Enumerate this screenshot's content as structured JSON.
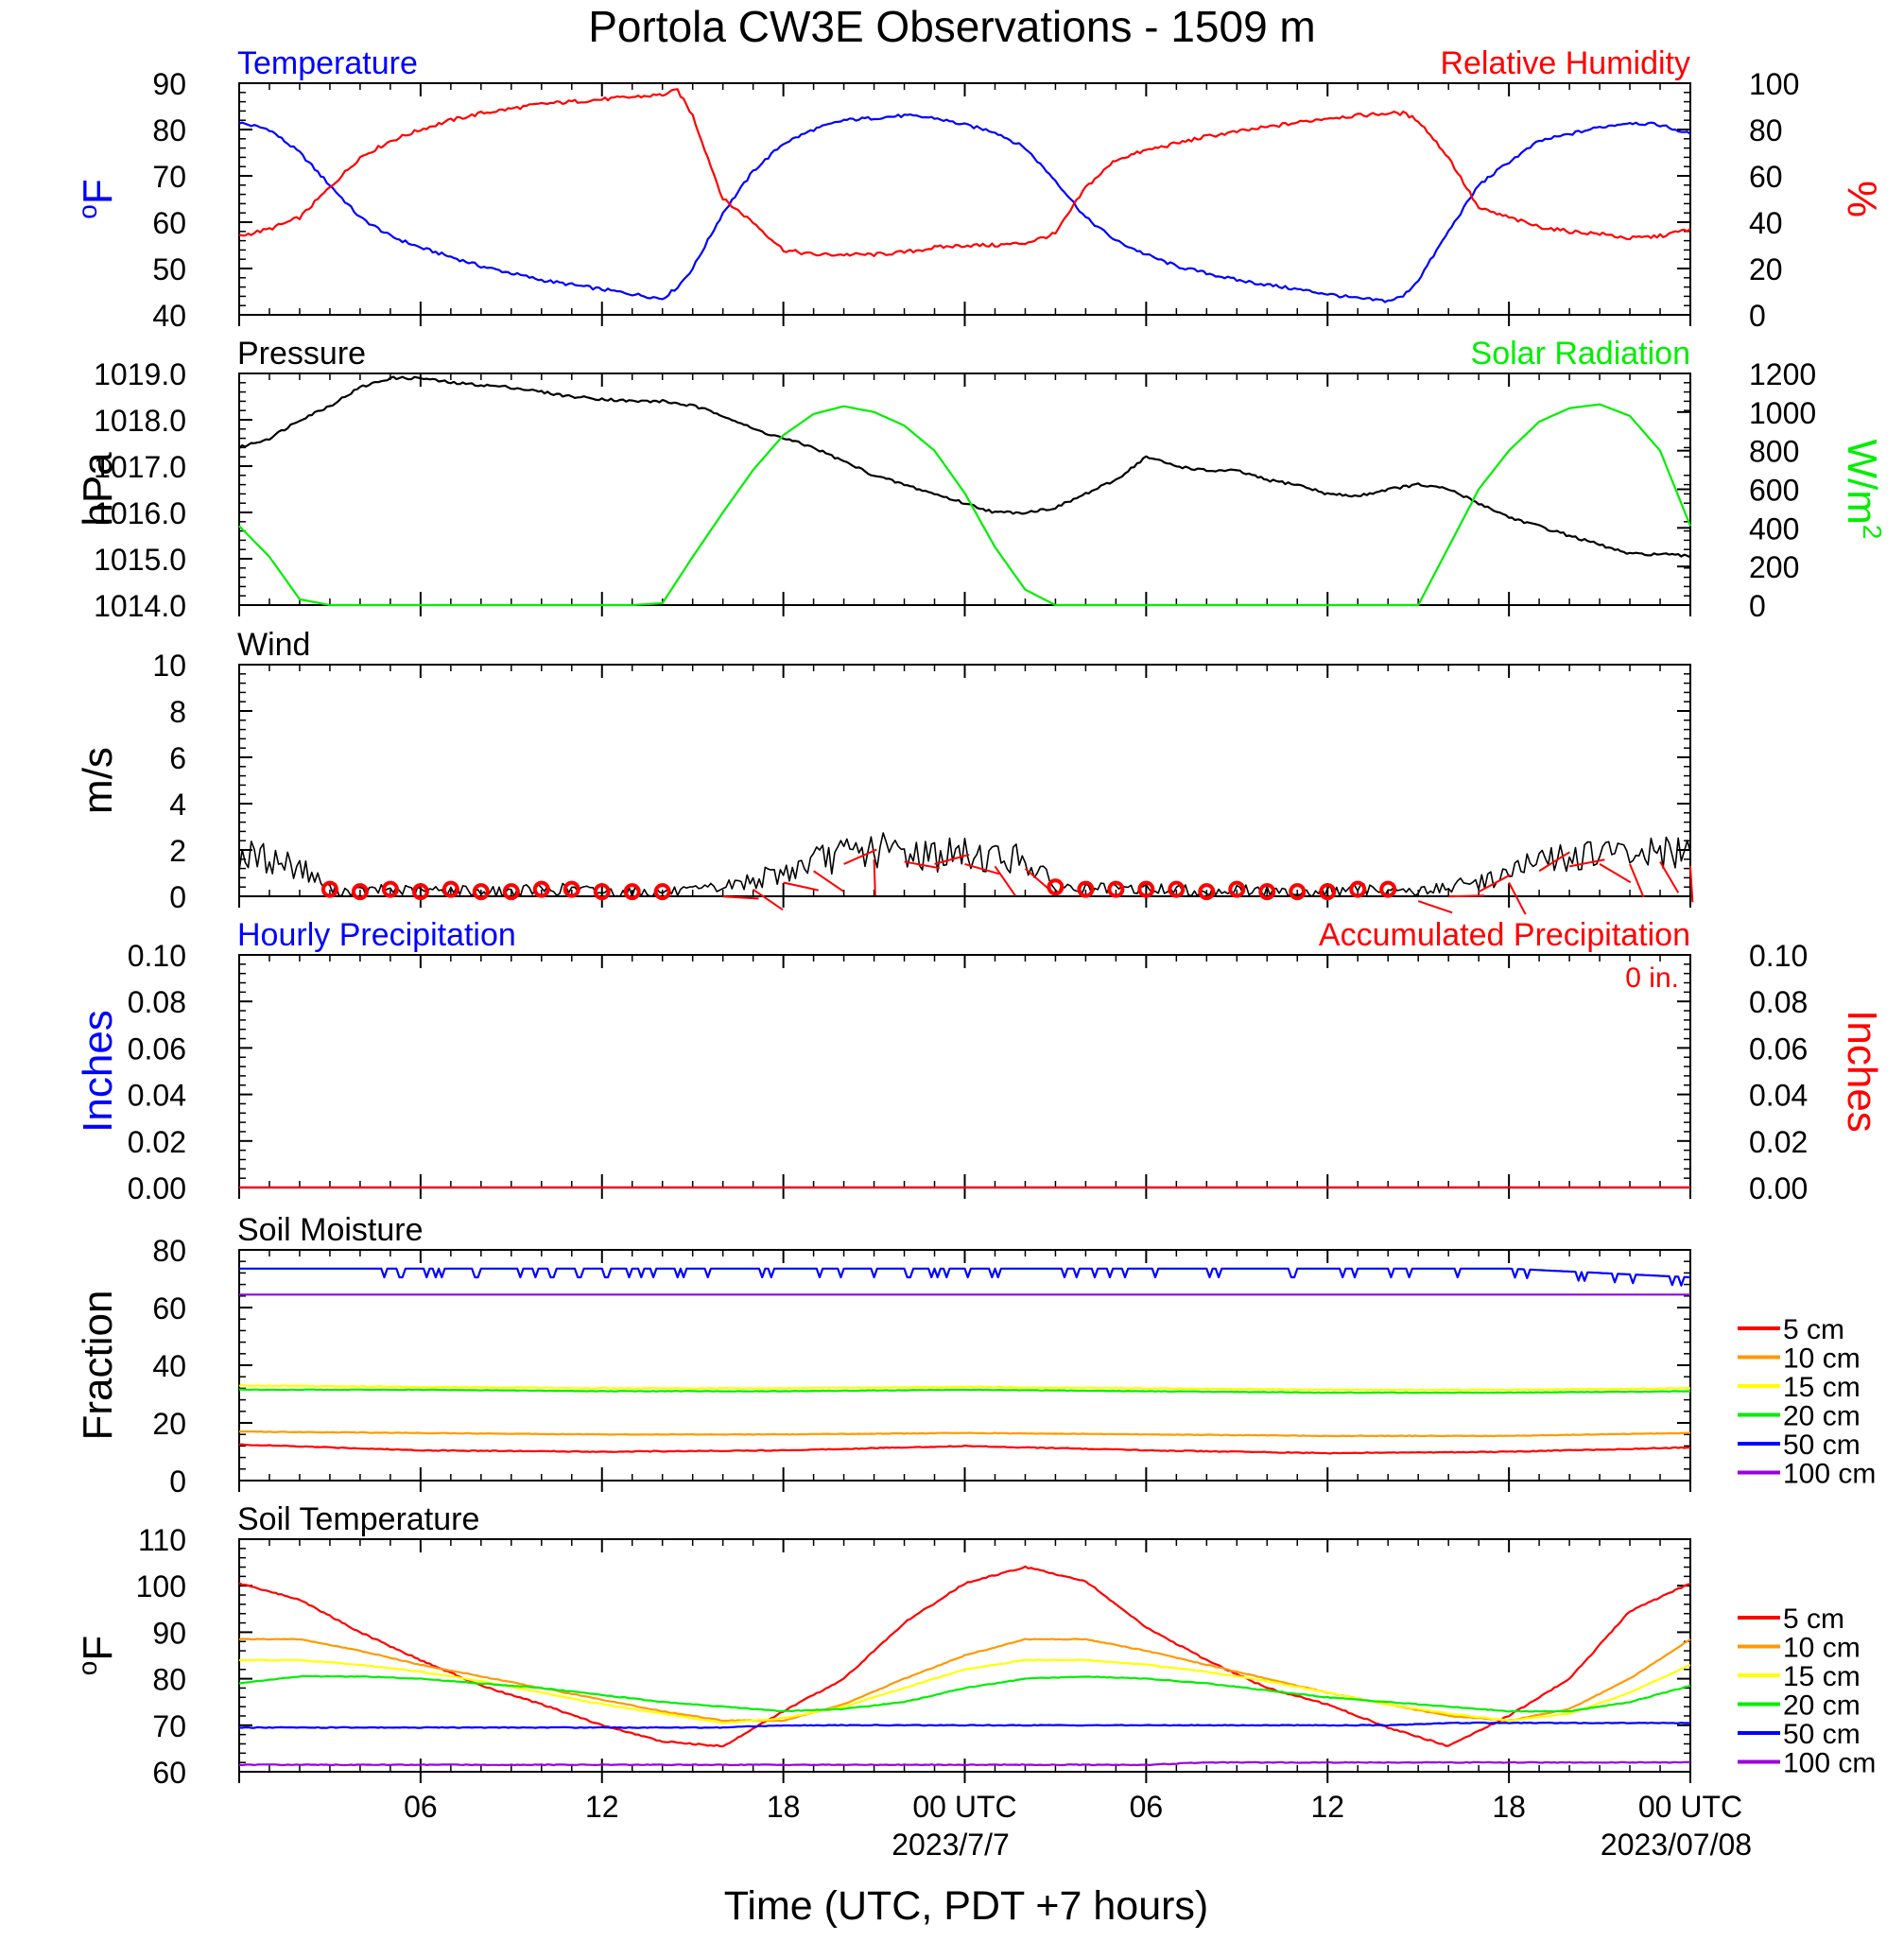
{
  "title": "Portola CW3E Observations - 1509 m",
  "x_axis": {
    "ticks": [
      "06",
      "12",
      "18",
      "00 UTC",
      "06",
      "12",
      "18",
      "00 UTC"
    ],
    "dates": [
      "2023/7/7",
      "2023/07/08"
    ],
    "label": "Time (UTC, PDT +7 hours)"
  },
  "colors": {
    "temperature": "#0000ff",
    "humidity": "#ff0000",
    "pressure": "#000000",
    "solar": "#00ee00",
    "wind": "#000000",
    "wind_symbols": "#ff0000",
    "hourly_precip": "#0000ff",
    "accum_precip": "#ff0000",
    "depth_5": "#ff0000",
    "depth_10": "#ff9900",
    "depth_15": "#ffff00",
    "depth_20": "#00ee00",
    "depth_50": "#0000ff",
    "depth_100": "#9900dd"
  },
  "chart_data": [
    {
      "type": "line",
      "id": "temp_rh",
      "title_left": "Temperature",
      "title_right": "Relative Humidity",
      "ylabel_left": "oF",
      "ylabel_right": "%",
      "ylim_left": [
        40,
        90
      ],
      "ylim_right": [
        0,
        100
      ],
      "yticks_left": [
        "40",
        "50",
        "60",
        "70",
        "80",
        "90"
      ],
      "yticks_right": [
        "0",
        "20",
        "40",
        "60",
        "80",
        "100"
      ],
      "x_hours": [
        0,
        1,
        2,
        3,
        4,
        5,
        6,
        7,
        8,
        9,
        10,
        11,
        12,
        13,
        14,
        14.5,
        15,
        16,
        17,
        18,
        19,
        20,
        21,
        22,
        23,
        24,
        25,
        26,
        27,
        28,
        29,
        30,
        31,
        32,
        33,
        34,
        35,
        36,
        37,
        38,
        38.5,
        39,
        40,
        41,
        42,
        43,
        44,
        45,
        46,
        47,
        48
      ],
      "series": [
        {
          "name": "Temperature",
          "axis": "left",
          "values": [
            81.5,
            80,
            75,
            68,
            61,
            57,
            54.5,
            52.5,
            50.5,
            49,
            47.5,
            46.5,
            45.5,
            44.5,
            43.5,
            46,
            50,
            62,
            71,
            77,
            80,
            82,
            82.5,
            83,
            82.5,
            81,
            79.5,
            76,
            69,
            61,
            56,
            53,
            50.5,
            49,
            47.5,
            46.5,
            45.5,
            44.5,
            43.5,
            43,
            44,
            47.5,
            58,
            68,
            73,
            77.5,
            79,
            80.5,
            81.5,
            81,
            79
          ]
        },
        {
          "name": "Relative Humidity",
          "axis": "right",
          "values": [
            34,
            37,
            42,
            55,
            68,
            75,
            80,
            84,
            87,
            89,
            91,
            92,
            93,
            94,
            95,
            97,
            86,
            50,
            40,
            28,
            26,
            26,
            26,
            27,
            29,
            30,
            30,
            31,
            35,
            55,
            67,
            71,
            74,
            77,
            79,
            81,
            83,
            85,
            86,
            87,
            87,
            84,
            68,
            46,
            42,
            38,
            36,
            35,
            33,
            34,
            37
          ]
        }
      ]
    },
    {
      "type": "line",
      "id": "pressure_solar",
      "title_left": "Pressure",
      "title_right": "Solar Radiation",
      "ylabel_left": "hPa",
      "ylabel_right": "W/m2",
      "ylim_left": [
        1014.0,
        1019.0
      ],
      "ylim_right": [
        0,
        1200
      ],
      "yticks_left": [
        "1014.0",
        "1015.0",
        "1016.0",
        "1017.0",
        "1018.0",
        "1019.0"
      ],
      "yticks_right": [
        "0",
        "200",
        "400",
        "600",
        "800",
        "1000",
        "1200"
      ],
      "x_hours": [
        0,
        1,
        2,
        3,
        4,
        5,
        6,
        7,
        8,
        9,
        10,
        11,
        12,
        13,
        14,
        15,
        16,
        17,
        18,
        19,
        20,
        21,
        22,
        23,
        24,
        25,
        26,
        27,
        28,
        29,
        30,
        31,
        32,
        33,
        34,
        35,
        36,
        37,
        38,
        39,
        40,
        41,
        42,
        43,
        44,
        45,
        46,
        47,
        48
      ],
      "series": [
        {
          "name": "Pressure",
          "axis": "left",
          "values": [
            1017.4,
            1017.6,
            1018.0,
            1018.3,
            1018.7,
            1018.9,
            1018.9,
            1018.8,
            1018.75,
            1018.7,
            1018.6,
            1018.5,
            1018.45,
            1018.4,
            1018.4,
            1018.3,
            1018.1,
            1017.8,
            1017.6,
            1017.4,
            1017.1,
            1016.8,
            1016.6,
            1016.4,
            1016.2,
            1016.0,
            1016.0,
            1016.1,
            1016.4,
            1016.7,
            1017.2,
            1017.0,
            1016.9,
            1016.9,
            1016.7,
            1016.6,
            1016.4,
            1016.35,
            1016.5,
            1016.6,
            1016.5,
            1016.2,
            1015.9,
            1015.7,
            1015.5,
            1015.3,
            1015.1,
            1015.1,
            1015.05
          ]
        },
        {
          "name": "Solar Radiation",
          "axis": "right",
          "values": [
            410,
            250,
            30,
            0,
            0,
            0,
            0,
            0,
            0,
            0,
            0,
            0,
            0,
            0,
            10,
            250,
            480,
            700,
            880,
            990,
            1030,
            1000,
            930,
            800,
            580,
            300,
            80,
            0,
            0,
            0,
            0,
            0,
            0,
            0,
            0,
            0,
            0,
            0,
            0,
            0,
            300,
            600,
            800,
            950,
            1020,
            1040,
            980,
            800,
            410
          ]
        }
      ]
    },
    {
      "type": "line",
      "id": "wind",
      "title_left": "Wind",
      "ylabel_left": "m/s",
      "ylim_left": [
        0,
        10
      ],
      "yticks_left": [
        "0",
        "2",
        "4",
        "6",
        "8",
        "10"
      ],
      "x_hours": [
        0,
        1,
        2,
        3,
        4,
        5,
        6,
        7,
        8,
        9,
        10,
        11,
        12,
        13,
        14,
        15,
        16,
        17,
        18,
        19,
        20,
        21,
        22,
        23,
        24,
        25,
        26,
        27,
        28,
        29,
        30,
        31,
        32,
        33,
        34,
        35,
        36,
        37,
        38,
        39,
        40,
        41,
        42,
        43,
        44,
        45,
        46,
        47,
        48
      ],
      "series": [
        {
          "name": "Wind Speed",
          "axis": "left",
          "values": [
            1.8,
            1.6,
            1.3,
            0.3,
            0.2,
            0.3,
            0.2,
            0.3,
            0.2,
            0.2,
            0.3,
            0.3,
            0.2,
            0.2,
            0.2,
            0.2,
            0.4,
            0.7,
            1.0,
            1.5,
            1.8,
            2.0,
            1.9,
            1.8,
            1.8,
            1.7,
            1.6,
            0.4,
            0.3,
            0.3,
            0.3,
            0.3,
            0.2,
            0.3,
            0.2,
            0.2,
            0.2,
            0.3,
            0.3,
            0.2,
            0.4,
            0.6,
            1.0,
            1.5,
            1.7,
            1.8,
            1.8,
            1.9,
            1.7
          ]
        }
      ],
      "calm_markers_hours": [
        3,
        4,
        5,
        6,
        7,
        8,
        9,
        10,
        11,
        12,
        13,
        14,
        27,
        28,
        29,
        30,
        31,
        32,
        33,
        34,
        35,
        36,
        37,
        38
      ]
    },
    {
      "type": "line",
      "id": "precip",
      "title_left": "Hourly Precipitation",
      "title_right": "Accumulated Precipitation",
      "accum_total": "0 in.",
      "ylabel_left": "Inches",
      "ylabel_right": "Inches",
      "ylim_left": [
        0,
        0.1
      ],
      "ylim_right": [
        0,
        0.1
      ],
      "yticks_left": [
        "0.00",
        "0.02",
        "0.04",
        "0.06",
        "0.08",
        "0.10"
      ],
      "yticks_right": [
        "0.00",
        "0.02",
        "0.04",
        "0.06",
        "0.08",
        "0.10"
      ],
      "x_hours": [
        0,
        48
      ],
      "series": [
        {
          "name": "Hourly Precipitation",
          "axis": "left",
          "values": [
            0,
            0
          ]
        },
        {
          "name": "Accumulated Precipitation",
          "axis": "right",
          "values": [
            0,
            0
          ]
        }
      ]
    },
    {
      "type": "line",
      "id": "soil_moisture",
      "title_left": "Soil Moisture",
      "ylabel_left": "Fraction",
      "ylim_left": [
        0,
        80
      ],
      "yticks_left": [
        "0",
        "20",
        "40",
        "60",
        "80"
      ],
      "legend": [
        "5 cm",
        "10 cm",
        "15 cm",
        "20 cm",
        "50 cm",
        "100 cm"
      ],
      "x_hours": [
        0,
        6,
        12,
        18,
        24,
        30,
        36,
        42,
        48
      ],
      "series": [
        {
          "name": "5 cm",
          "axis": "left",
          "values": [
            12.5,
            10.5,
            10,
            10.5,
            12,
            10.5,
            9.5,
            10,
            11.5
          ]
        },
        {
          "name": "10 cm",
          "axis": "left",
          "values": [
            17,
            16.5,
            16,
            16,
            16.5,
            16,
            15.5,
            15.5,
            16.5
          ]
        },
        {
          "name": "15 cm",
          "axis": "left",
          "values": [
            33,
            32.5,
            32,
            32,
            32.5,
            32,
            31.5,
            31.5,
            32
          ]
        },
        {
          "name": "20 cm",
          "axis": "left",
          "values": [
            31.5,
            31.5,
            31,
            31,
            31.5,
            31,
            30.5,
            30.5,
            31
          ]
        },
        {
          "name": "50 cm",
          "axis": "left",
          "values": [
            73.5,
            73.5,
            73.5,
            73.5,
            73.5,
            73.5,
            73.5,
            73.5,
            70.5
          ]
        },
        {
          "name": "100 cm",
          "axis": "left",
          "values": [
            64.5,
            64.5,
            64.5,
            64.5,
            64.5,
            64.5,
            64.5,
            64.5,
            64.5
          ]
        }
      ]
    },
    {
      "type": "line",
      "id": "soil_temp",
      "title_left": "Soil Temperature",
      "ylabel_left": "oF",
      "ylim_left": [
        60,
        110
      ],
      "yticks_left": [
        "60",
        "70",
        "80",
        "90",
        "100",
        "110"
      ],
      "legend": [
        "5 cm",
        "10 cm",
        "15 cm",
        "20 cm",
        "50 cm",
        "100 cm"
      ],
      "x_hours": [
        0,
        2,
        4,
        6,
        8,
        10,
        12,
        14,
        16,
        18,
        20,
        22,
        24,
        26,
        28,
        30,
        32,
        34,
        36,
        38,
        40,
        42,
        44,
        46,
        48
      ],
      "series": [
        {
          "name": "5 cm",
          "axis": "left",
          "values": [
            100.5,
            97,
            90,
            84,
            78.5,
            74.5,
            70,
            66.5,
            65.5,
            73,
            80,
            92,
            100.5,
            104,
            101,
            91,
            84,
            78,
            74.5,
            69.5,
            65.5,
            72,
            80,
            94.5,
            100.5
          ]
        },
        {
          "name": "10 cm",
          "axis": "left",
          "values": [
            88.5,
            88.5,
            86,
            83,
            80.5,
            78,
            75.5,
            73,
            71,
            71,
            74.5,
            80,
            85,
            88.5,
            88.5,
            86,
            83,
            80,
            77,
            74.5,
            72,
            71,
            73.5,
            80,
            88.5
          ]
        },
        {
          "name": "15 cm",
          "axis": "left",
          "values": [
            84,
            84,
            83,
            81.5,
            79.5,
            77,
            74.5,
            72.5,
            70.5,
            71.5,
            74,
            78,
            82,
            84,
            84,
            83,
            81.5,
            79.5,
            77,
            74.5,
            72.5,
            71,
            72.5,
            77,
            83
          ]
        },
        {
          "name": "20 cm",
          "axis": "left",
          "values": [
            79,
            80.5,
            80.5,
            80,
            79,
            78,
            76.5,
            75,
            74,
            73,
            73.5,
            75,
            78,
            80,
            80.5,
            80,
            79,
            77.5,
            76,
            75,
            74,
            73,
            73,
            75,
            78.5
          ]
        },
        {
          "name": "50 cm",
          "axis": "left",
          "values": [
            69.5,
            69.5,
            69.5,
            69.5,
            69.5,
            69.5,
            69.5,
            69.5,
            69.5,
            70,
            70,
            70,
            70,
            70,
            70,
            70,
            70,
            70,
            70,
            70,
            70.5,
            70.5,
            70.5,
            70.5,
            70.5
          ]
        },
        {
          "name": "100 cm",
          "axis": "left",
          "values": [
            61.5,
            61.5,
            61.5,
            61.5,
            61.5,
            61.5,
            61.5,
            61.5,
            61.5,
            61.5,
            61.5,
            61.5,
            61.5,
            61.5,
            61.5,
            61.5,
            62,
            62,
            62,
            62,
            62,
            62,
            62,
            62,
            62
          ]
        }
      ]
    }
  ]
}
